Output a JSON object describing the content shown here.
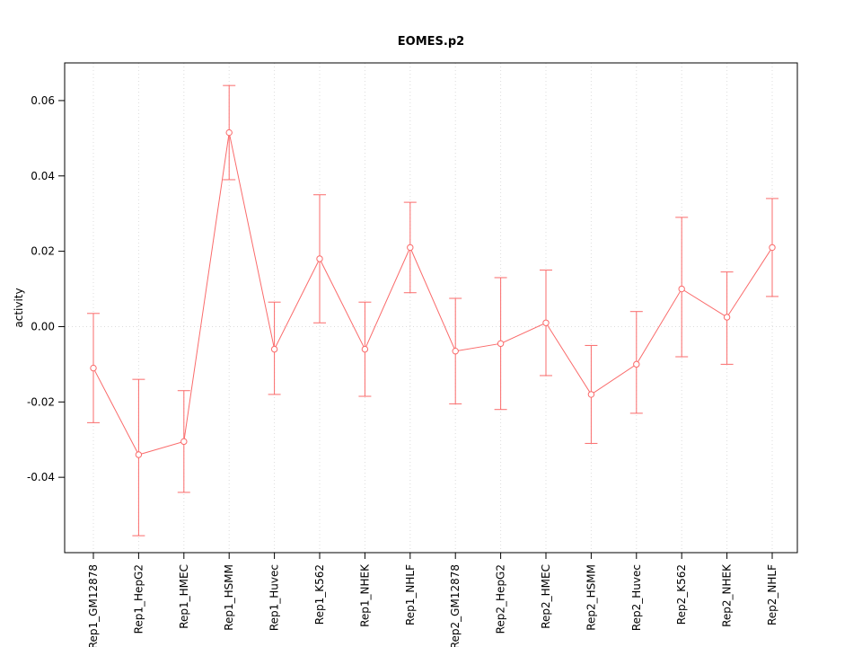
{
  "title": "EOMES.p2",
  "chart_data": {
    "type": "line",
    "title": "EOMES.p2",
    "xlabel": "",
    "ylabel": "activity",
    "ylim": [
      -0.06,
      0.07
    ],
    "yticks": [
      -0.04,
      -0.02,
      0.0,
      0.02,
      0.04,
      0.06
    ],
    "grid": "vertical-dotted",
    "zero_line": true,
    "legend": "none",
    "line_color": "#FA6B6B",
    "grid_color": "#DCDCDC",
    "categories": [
      "Rep1_GM12878",
      "Rep1_HepG2",
      "Rep1_HMEC",
      "Rep1_HSMM",
      "Rep1_Huvec",
      "Rep1_K562",
      "Rep1_NHEK",
      "Rep1_NHLF",
      "Rep2_GM12878",
      "Rep2_HepG2",
      "Rep2_HMEC",
      "Rep2_HSMM",
      "Rep2_Huvec",
      "Rep2_K562",
      "Rep2_NHEK",
      "Rep2_NHLF"
    ],
    "series": [
      {
        "name": "activity",
        "values": [
          -0.011,
          -0.034,
          -0.0305,
          0.0515,
          -0.006,
          0.018,
          -0.006,
          0.021,
          -0.0065,
          -0.0045,
          0.001,
          -0.018,
          -0.01,
          0.01,
          0.0025,
          0.021
        ],
        "lower": [
          -0.0255,
          -0.0555,
          -0.044,
          0.039,
          -0.018,
          0.001,
          -0.0185,
          0.009,
          -0.0205,
          -0.022,
          -0.013,
          -0.031,
          -0.023,
          -0.008,
          -0.01,
          0.008
        ],
        "upper": [
          0.0035,
          -0.014,
          -0.017,
          0.064,
          0.0065,
          0.035,
          0.0065,
          0.033,
          0.0075,
          0.013,
          0.015,
          -0.005,
          0.004,
          0.029,
          0.0145,
          0.034
        ]
      }
    ]
  }
}
